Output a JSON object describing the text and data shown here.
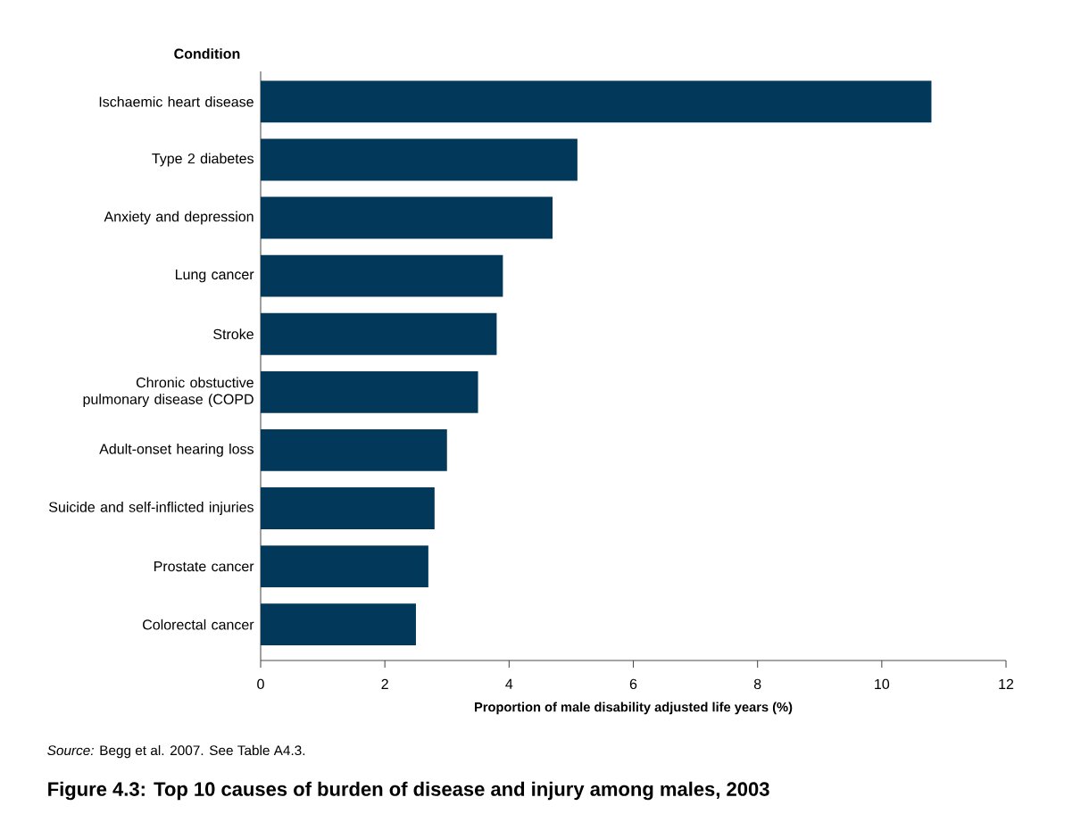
{
  "chart_data": {
    "type": "bar",
    "orientation": "horizontal",
    "title": "Figure 4.3: Top 10 causes of burden of disease and injury among males, 2003",
    "xlabel": "Proportion of male disability adjusted life years (%)",
    "ylabel": "Condition",
    "categories": [
      "Ischaemic heart disease",
      "Type 2 diabetes",
      "Anxiety and depression",
      "Lung cancer",
      "Stroke",
      "Chronic obstuctive pulmonary disease (COPD",
      "Adult-onset hearing loss",
      "Suicide and self-inflicted injuries",
      "Prostate cancer",
      "Colorectal cancer"
    ],
    "values": [
      10.8,
      5.1,
      4.7,
      3.9,
      3.8,
      3.5,
      3.0,
      2.8,
      2.7,
      2.5
    ],
    "color": "#02395a",
    "xlim": [
      0,
      12
    ],
    "xticks": [
      0,
      2,
      4,
      6,
      8,
      10,
      12
    ],
    "grid": false,
    "annotations": [
      "*Source:* Begg et al. 2007. See Table A4.3."
    ]
  }
}
